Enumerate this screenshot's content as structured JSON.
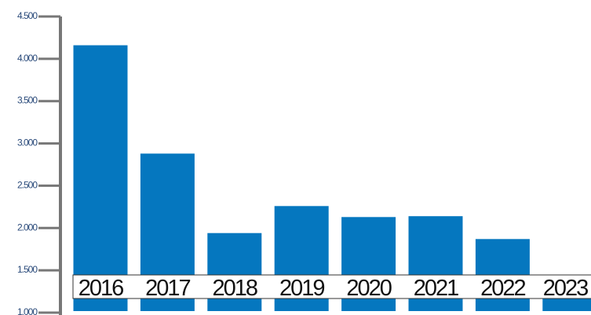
{
  "colors": {
    "bar": "#0577bf",
    "axis": "#777777",
    "tick_text": "#2a4a7a",
    "label_text": "#111111",
    "label_box_border": "#333333",
    "background": "#ffffff"
  },
  "chart_data": {
    "type": "bar",
    "title": "",
    "xlabel": "",
    "ylabel": "",
    "categories": [
      "2016",
      "2017",
      "2018",
      "2019",
      "2020",
      "2021",
      "2022",
      "2023"
    ],
    "values": [
      4160,
      2880,
      1940,
      2260,
      2130,
      2140,
      1870,
      1320
    ],
    "yticks": [
      {
        "value": 1000,
        "label": "1.000"
      },
      {
        "value": 1500,
        "label": "1.500"
      },
      {
        "value": 2000,
        "label": "2.000"
      },
      {
        "value": 2500,
        "label": "2.500"
      },
      {
        "value": 3000,
        "label": "3.000"
      },
      {
        "value": 3500,
        "label": "3.500"
      },
      {
        "value": 4000,
        "label": "4.000"
      },
      {
        "value": 4500,
        "label": "4.500"
      }
    ],
    "ylim": [
      1000,
      4500
    ],
    "grid": false,
    "legend": "none"
  }
}
